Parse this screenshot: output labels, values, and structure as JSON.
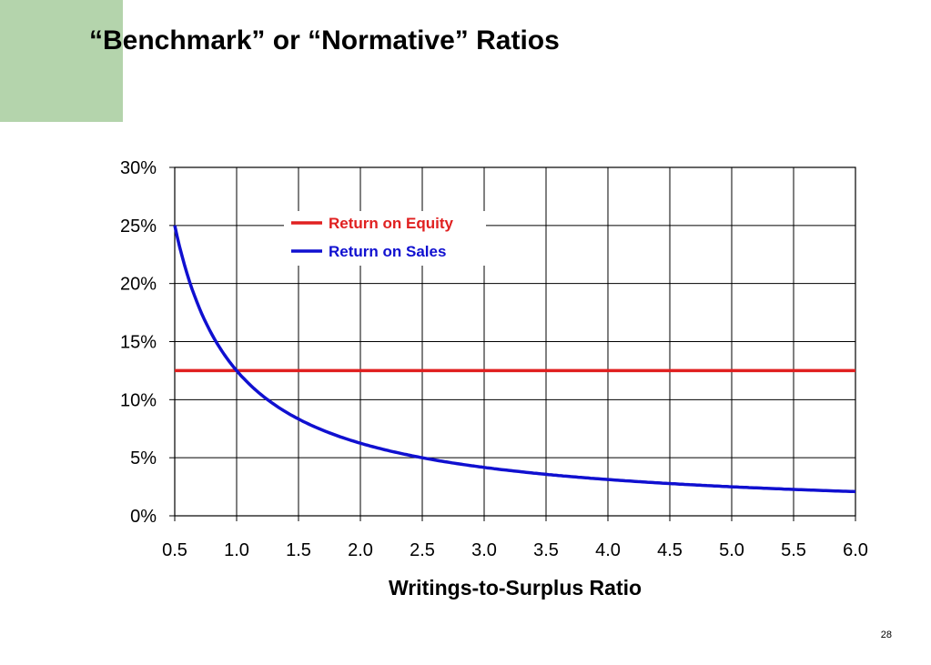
{
  "slide": {
    "title": "“Benchmark” or “Normative” Ratios",
    "page_number": "28",
    "accent_color": "#b4d4ac"
  },
  "chart_data": {
    "type": "line",
    "title": "",
    "xlabel": "Writings-to-Surplus Ratio",
    "ylabel": "",
    "xlim": [
      0.5,
      6.0
    ],
    "ylim": [
      0,
      0.3
    ],
    "x_ticks": [
      "0.5",
      "1.0",
      "1.5",
      "2.0",
      "2.5",
      "3.0",
      "3.5",
      "4.0",
      "4.5",
      "5.0",
      "5.5",
      "6.0"
    ],
    "y_ticks": [
      "0%",
      "5%",
      "10%",
      "15%",
      "20%",
      "25%",
      "30%"
    ],
    "grid": true,
    "legend_position": "top-left",
    "series": [
      {
        "name": "Return on Equity",
        "color": "#e02020",
        "x": [
          0.5,
          6.0
        ],
        "y": [
          0.125,
          0.125
        ]
      },
      {
        "name": "Return on Sales",
        "color": "#1010d0",
        "x": [
          0.5,
          0.6,
          0.7,
          0.8,
          0.9,
          1.0,
          1.25,
          1.5,
          1.75,
          2.0,
          2.5,
          3.0,
          3.5,
          4.0,
          4.5,
          5.0,
          5.5,
          6.0
        ],
        "y": [
          0.25,
          0.2083,
          0.1786,
          0.1563,
          0.1389,
          0.125,
          0.1,
          0.0833,
          0.0714,
          0.0625,
          0.05,
          0.0417,
          0.0357,
          0.0313,
          0.0278,
          0.025,
          0.0227,
          0.0208
        ]
      }
    ]
  }
}
